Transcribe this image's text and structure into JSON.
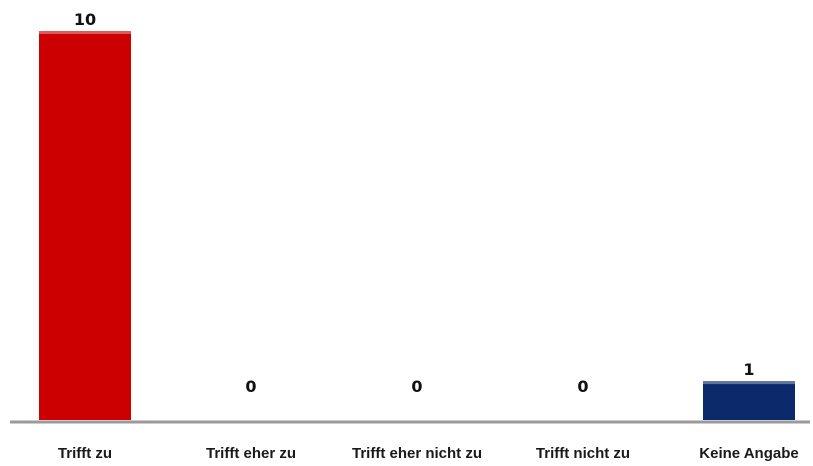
{
  "chart_data": {
    "type": "bar",
    "title": "",
    "xlabel": "",
    "ylabel": "",
    "categories": [
      "Trifft zu",
      "Trifft eher zu",
      "Trifft eher nicht zu",
      "Trifft nicht zu",
      "Keine Angabe"
    ],
    "values": [
      10,
      0,
      0,
      0,
      1
    ],
    "ylim": [
      0,
      10
    ],
    "grid": false,
    "data_labels": true,
    "colors": [
      "#cc0000",
      "#cc0000",
      "#cc0000",
      "#cc0000",
      "#0c2a6b"
    ]
  }
}
